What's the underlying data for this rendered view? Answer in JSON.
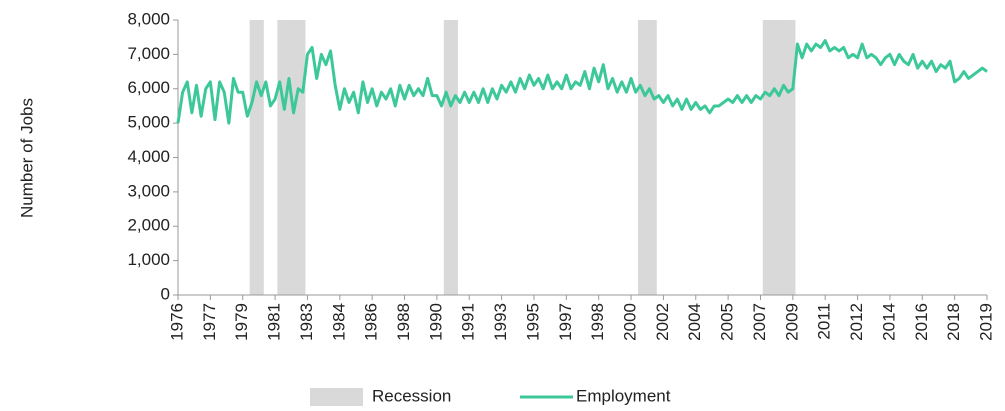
{
  "chart_data": {
    "type": "line",
    "y_label": "Number of Jobs",
    "ylim": [
      0,
      8000
    ],
    "yticks": [
      0,
      {
        "value": 1000,
        "label": "1,000"
      },
      {
        "value": 2000,
        "label": "2,000"
      },
      {
        "value": 3000,
        "label": "3,000"
      },
      {
        "value": 4000,
        "label": "4,000"
      },
      {
        "value": 5000,
        "label": "5,000"
      },
      {
        "value": 6000,
        "label": "6,000"
      },
      {
        "value": 7000,
        "label": "7,000"
      },
      {
        "value": 8000,
        "label": "8,000"
      }
    ],
    "categories": [
      "1976",
      null,
      null,
      null,
      null,
      null,
      null,
      "1977",
      null,
      null,
      null,
      null,
      null,
      null,
      "1979",
      null,
      null,
      null,
      null,
      null,
      null,
      "1981",
      null,
      null,
      null,
      null,
      null,
      null,
      "1983",
      null,
      null,
      null,
      null,
      null,
      null,
      "1984",
      null,
      null,
      null,
      null,
      null,
      null,
      "1986",
      null,
      null,
      null,
      null,
      null,
      null,
      "1988",
      null,
      null,
      null,
      null,
      null,
      null,
      "1990",
      null,
      null,
      null,
      null,
      null,
      null,
      "1991",
      null,
      null,
      null,
      null,
      null,
      null,
      "1993",
      null,
      null,
      null,
      null,
      null,
      null,
      "1995",
      null,
      null,
      null,
      null,
      null,
      null,
      "1997",
      null,
      null,
      null,
      null,
      null,
      null,
      "1998",
      null,
      null,
      null,
      null,
      null,
      null,
      "2000",
      null,
      null,
      null,
      null,
      null,
      null,
      "2002",
      null,
      null,
      null,
      null,
      null,
      null,
      "2004",
      null,
      null,
      null,
      null,
      null,
      null,
      "2005",
      null,
      null,
      null,
      null,
      null,
      null,
      "2007",
      null,
      null,
      null,
      null,
      null,
      null,
      "2009",
      null,
      null,
      null,
      null,
      null,
      null,
      "2011",
      null,
      null,
      null,
      null,
      null,
      null,
      "2012",
      null,
      null,
      null,
      null,
      null,
      null,
      "2014",
      null,
      null,
      null,
      null,
      null,
      null,
      "2016",
      null,
      null,
      null,
      null,
      null,
      null,
      "2018",
      null,
      null,
      null,
      null,
      null,
      null,
      "2019"
    ],
    "series": [
      {
        "name": "Recession",
        "kind": "bar",
        "color": "#d9d9d9",
        "values": [
          null,
          null,
          null,
          null,
          null,
          null,
          null,
          null,
          null,
          null,
          null,
          null,
          null,
          null,
          null,
          null,
          8000,
          8000,
          8000,
          null,
          null,
          null,
          8000,
          8000,
          8000,
          8000,
          8000,
          8000,
          null,
          null,
          null,
          null,
          null,
          null,
          null,
          null,
          null,
          null,
          null,
          null,
          null,
          null,
          null,
          null,
          null,
          null,
          null,
          null,
          null,
          null,
          null,
          null,
          null,
          null,
          null,
          null,
          null,
          null,
          8000,
          8000,
          8000,
          null,
          null,
          null,
          null,
          null,
          null,
          null,
          null,
          null,
          null,
          null,
          null,
          null,
          null,
          null,
          null,
          null,
          null,
          null,
          null,
          null,
          null,
          null,
          null,
          null,
          null,
          null,
          null,
          null,
          null,
          null,
          null,
          null,
          null,
          null,
          null,
          null,
          null,
          null,
          8000,
          8000,
          8000,
          8000,
          null,
          null,
          null,
          null,
          null,
          null,
          null,
          null,
          null,
          null,
          null,
          null,
          null,
          null,
          null,
          null,
          null,
          null,
          null,
          null,
          null,
          null,
          null,
          8000,
          8000,
          8000,
          8000,
          8000,
          8000,
          8000,
          null,
          null,
          null,
          null,
          null,
          null,
          null,
          null,
          null,
          null,
          null,
          null,
          null,
          null,
          null,
          null,
          null,
          null,
          null,
          null,
          null,
          null,
          null,
          null,
          null,
          null,
          null,
          null,
          null,
          null,
          null,
          null,
          null,
          null,
          null,
          null,
          null,
          null,
          null,
          null,
          null,
          null
        ]
      },
      {
        "name": "Employment",
        "kind": "line",
        "color": "#3dc89a",
        "values": [
          5000,
          5900,
          6200,
          5300,
          6100,
          5200,
          6000,
          6200,
          5100,
          6200,
          5900,
          5000,
          6300,
          5900,
          5900,
          5200,
          5600,
          6200,
          5800,
          6200,
          5500,
          5700,
          6200,
          5400,
          6300,
          5300,
          6000,
          5900,
          7000,
          7200,
          6300,
          7000,
          6700,
          7100,
          6100,
          5400,
          6000,
          5600,
          5900,
          5300,
          6200,
          5600,
          6000,
          5500,
          5900,
          5700,
          6000,
          5500,
          6100,
          5700,
          6100,
          5800,
          6000,
          5800,
          6300,
          5800,
          5800,
          5500,
          5900,
          5500,
          5800,
          5600,
          5900,
          5600,
          5900,
          5600,
          6000,
          5600,
          6000,
          5700,
          6100,
          5900,
          6200,
          5900,
          6300,
          6000,
          6400,
          6100,
          6300,
          6000,
          6400,
          6000,
          6200,
          6000,
          6400,
          6000,
          6200,
          6100,
          6500,
          6000,
          6600,
          6200,
          6700,
          6000,
          6300,
          5900,
          6200,
          5900,
          6300,
          5900,
          6100,
          5800,
          6000,
          5700,
          5800,
          5600,
          5800,
          5500,
          5700,
          5400,
          5700,
          5400,
          5600,
          5400,
          5500,
          5300,
          5500,
          5500,
          5600,
          5700,
          5600,
          5800,
          5600,
          5800,
          5600,
          5800,
          5700,
          5900,
          5800,
          6000,
          5800,
          6100,
          5900,
          6000,
          7300,
          6900,
          7300,
          7100,
          7300,
          7200,
          7400,
          7100,
          7200,
          7100,
          7200,
          6900,
          7000,
          6900,
          7300,
          6900,
          7000,
          6900,
          6700,
          6900,
          7000,
          6700,
          7000,
          6800,
          6700,
          7000,
          6600,
          6800,
          6600,
          6800,
          6500,
          6700,
          6600,
          6800,
          6200,
          6300,
          6500,
          6300,
          6400,
          6500,
          6600,
          6500
        ]
      }
    ]
  }
}
